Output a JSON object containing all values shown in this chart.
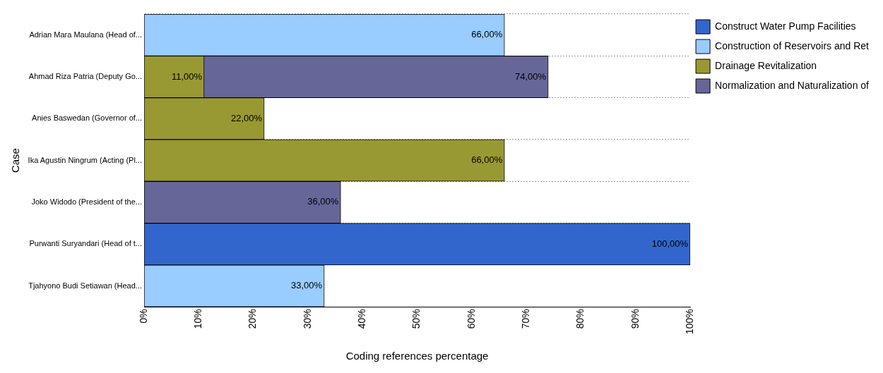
{
  "chart_data": {
    "type": "bar",
    "orientation": "horizontal",
    "xlabel": "Coding references percentage",
    "ylabel": "Case",
    "categories": [
      "Adrian Mara Maulana (Head of...",
      "Ahmad Riza Patria (Deputy Go...",
      "Anies Baswedan (Governor of...",
      "Ika Agustin Ningrum (Acting (Pl...",
      "Joko Widodo (President of the...",
      "Purwanti Suryandari (Head of t...",
      "Tjahyono Budi Setiawan (Head..."
    ],
    "series": [
      {
        "name": "Construct Water Pump Facilities",
        "color": "#3366cc",
        "values": [
          null,
          null,
          null,
          null,
          null,
          100,
          null
        ],
        "value_labels": [
          null,
          null,
          null,
          null,
          null,
          "100,00%",
          null
        ]
      },
      {
        "name": "Construction of Reservoirs and Ret",
        "color": "#99ccff",
        "values": [
          66,
          null,
          null,
          null,
          null,
          null,
          33
        ],
        "value_labels": [
          "66,00%",
          null,
          null,
          null,
          null,
          null,
          "33,00%"
        ]
      },
      {
        "name": "Drainage Revitalization",
        "color": "#999933",
        "values": [
          null,
          11,
          22,
          66,
          null,
          null,
          null
        ],
        "value_labels": [
          null,
          "11,00%",
          "22,00%",
          "66,00%",
          null,
          null,
          null
        ]
      },
      {
        "name": "Normalization and Naturalization of",
        "color": "#666699",
        "values": [
          null,
          74,
          null,
          null,
          36,
          null,
          null
        ],
        "value_labels": [
          null,
          "74,00%",
          null,
          null,
          "36,00%",
          null,
          null
        ]
      }
    ],
    "xlim": [
      0,
      100
    ],
    "xticks": [
      {
        "value": 0,
        "label": "0%"
      },
      {
        "value": 10,
        "label": "10%"
      },
      {
        "value": 20,
        "label": "20%"
      },
      {
        "value": 30,
        "label": "30%"
      },
      {
        "value": 40,
        "label": "40%"
      },
      {
        "value": 50,
        "label": "50%"
      },
      {
        "value": 60,
        "label": "60%"
      },
      {
        "value": 70,
        "label": "70%"
      },
      {
        "value": 80,
        "label": "80%"
      },
      {
        "value": 90,
        "label": "90%"
      },
      {
        "value": 100,
        "label": "100%"
      }
    ],
    "grid": "y",
    "legend": "right"
  }
}
